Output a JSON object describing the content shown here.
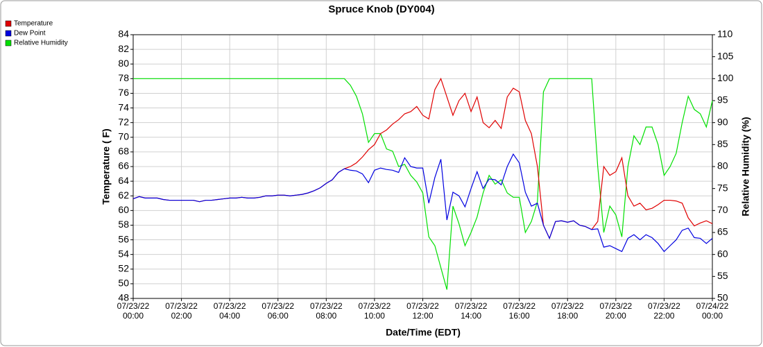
{
  "chart_data": {
    "type": "line",
    "title": "Spruce Knob (DY004)",
    "x_label": "Date/Time (EDT)",
    "y_label": "Temperature ( F)",
    "y2_label": "Relative Humidity (%)",
    "grid": true,
    "legend": "top-left",
    "xlim": [
      0,
      24
    ],
    "xticks": [
      {
        "value": 0,
        "label": "07/23/22 00:00"
      },
      {
        "value": 2,
        "label": "07/23/22 02:00"
      },
      {
        "value": 4,
        "label": "07/23/22 04:00"
      },
      {
        "value": 6,
        "label": "07/23/22 06:00"
      },
      {
        "value": 8,
        "label": "07/23/22 08:00"
      },
      {
        "value": 10,
        "label": "07/23/22 10:00"
      },
      {
        "value": 12,
        "label": "07/23/22 12:00"
      },
      {
        "value": 14,
        "label": "07/23/22 14:00"
      },
      {
        "value": 16,
        "label": "07/23/22 16:00"
      },
      {
        "value": 18,
        "label": "07/23/22 18:00"
      },
      {
        "value": 20,
        "label": "07/23/22 20:00"
      },
      {
        "value": 22,
        "label": "07/23/22 22:00"
      },
      {
        "value": 24,
        "label": "07/24/22 00:00"
      }
    ],
    "ylim": [
      48,
      84
    ],
    "yticks": [
      48,
      50,
      52,
      54,
      56,
      58,
      60,
      62,
      64,
      66,
      68,
      70,
      72,
      74,
      76,
      78,
      80,
      82,
      84
    ],
    "y2lim": [
      50,
      110
    ],
    "y2ticks": [
      50,
      55,
      60,
      65,
      70,
      75,
      80,
      85,
      90,
      95,
      100,
      105,
      110
    ],
    "x": [
      0,
      0.25,
      0.5,
      0.75,
      1,
      1.25,
      1.5,
      1.75,
      2,
      2.25,
      2.5,
      2.75,
      3,
      3.25,
      3.5,
      3.75,
      4,
      4.25,
      4.5,
      4.75,
      5,
      5.25,
      5.5,
      5.75,
      6,
      6.25,
      6.5,
      6.75,
      7,
      7.25,
      7.5,
      7.75,
      8,
      8.25,
      8.5,
      8.75,
      9,
      9.25,
      9.5,
      9.75,
      10,
      10.25,
      10.5,
      10.75,
      11,
      11.25,
      11.5,
      11.75,
      12,
      12.25,
      12.5,
      12.75,
      13,
      13.25,
      13.5,
      13.75,
      14,
      14.25,
      14.5,
      14.75,
      15,
      15.25,
      15.5,
      15.75,
      16,
      16.25,
      16.5,
      16.75,
      17,
      17.25,
      17.5,
      17.75,
      18,
      18.25,
      18.5,
      18.75,
      19,
      19.25,
      19.5,
      19.75,
      20,
      20.25,
      20.5,
      20.75,
      21,
      21.25,
      21.5,
      21.75,
      22,
      22.25,
      22.5,
      22.75,
      23,
      23.25,
      23.5,
      23.75,
      24
    ],
    "series": [
      {
        "name": "Temperature",
        "color": "#e00000",
        "axis": "y",
        "values": [
          61.6,
          61.9,
          61.7,
          61.7,
          61.7,
          61.5,
          61.4,
          61.4,
          61.4,
          61.4,
          61.4,
          61.2,
          61.4,
          61.4,
          61.5,
          61.6,
          61.7,
          61.7,
          61.8,
          61.7,
          61.7,
          61.8,
          62.0,
          62.0,
          62.1,
          62.1,
          62.0,
          62.1,
          62.2,
          62.4,
          62.7,
          63.1,
          63.7,
          64.2,
          65.2,
          65.7,
          66.0,
          66.5,
          67.3,
          68.3,
          69.0,
          70.5,
          71.0,
          71.8,
          72.4,
          73.2,
          73.5,
          74.2,
          73.0,
          72.5,
          76.5,
          78.0,
          75.5,
          73.0,
          75.0,
          76.0,
          73.5,
          75.5,
          72.0,
          71.3,
          72.3,
          71.2,
          75.5,
          76.7,
          76.2,
          72.3,
          70.5,
          66.0,
          58.0,
          56.2,
          58.5,
          58.6,
          58.4,
          58.6,
          58.0,
          57.8,
          57.4,
          58.5,
          66.0,
          64.8,
          65.3,
          67.2,
          62.0,
          60.6,
          61.0,
          60.1,
          60.3,
          60.8,
          61.4,
          61.4,
          61.3,
          61.0,
          59.0,
          57.9,
          58.3,
          58.6,
          58.2
        ]
      },
      {
        "name": "Dew Point",
        "color": "#0000e0",
        "axis": "y",
        "values": [
          61.6,
          61.9,
          61.7,
          61.7,
          61.7,
          61.5,
          61.4,
          61.4,
          61.4,
          61.4,
          61.4,
          61.2,
          61.4,
          61.4,
          61.5,
          61.6,
          61.7,
          61.7,
          61.8,
          61.7,
          61.7,
          61.8,
          62.0,
          62.0,
          62.1,
          62.1,
          62.0,
          62.1,
          62.2,
          62.4,
          62.7,
          63.1,
          63.7,
          64.2,
          65.2,
          65.7,
          65.5,
          65.4,
          65.0,
          63.8,
          65.5,
          65.8,
          65.6,
          65.5,
          65.2,
          67.2,
          66.0,
          65.8,
          65.8,
          61.0,
          64.5,
          67.0,
          58.7,
          62.5,
          62.0,
          60.5,
          63.0,
          65.3,
          63.0,
          64.3,
          64.2,
          63.5,
          66.0,
          67.7,
          66.5,
          62.5,
          60.6,
          61.0,
          58.0,
          56.2,
          58.5,
          58.6,
          58.4,
          58.6,
          58.0,
          57.8,
          57.4,
          57.5,
          55.0,
          55.2,
          54.8,
          54.4,
          56.2,
          56.7,
          56.0,
          56.7,
          56.3,
          55.5,
          54.4,
          55.2,
          56.0,
          57.3,
          57.6,
          56.3,
          56.2,
          55.5,
          56.2
        ]
      },
      {
        "name": "Relative Humidity",
        "color": "#00e000",
        "axis": "y2",
        "values": [
          100,
          100,
          100,
          100,
          100,
          100,
          100,
          100,
          100,
          100,
          100,
          100,
          100,
          100,
          100,
          100,
          100,
          100,
          100,
          100,
          100,
          100,
          100,
          100,
          100,
          100,
          100,
          100,
          100,
          100,
          100,
          100,
          100,
          100,
          100,
          100,
          98.5,
          96,
          92,
          85.5,
          87.5,
          87.5,
          84,
          83.5,
          80,
          80.5,
          78,
          76.5,
          74,
          64,
          62,
          57,
          52,
          71,
          67,
          62,
          65,
          68.5,
          74,
          78,
          76,
          77,
          74,
          73,
          73,
          65,
          67.5,
          72,
          97,
          100,
          100,
          100,
          100,
          100,
          100,
          100,
          100,
          80,
          65,
          71,
          69,
          64,
          80,
          87,
          85,
          89,
          89,
          85,
          78,
          80,
          83,
          90,
          96,
          93,
          92,
          89,
          95
        ]
      }
    ]
  }
}
